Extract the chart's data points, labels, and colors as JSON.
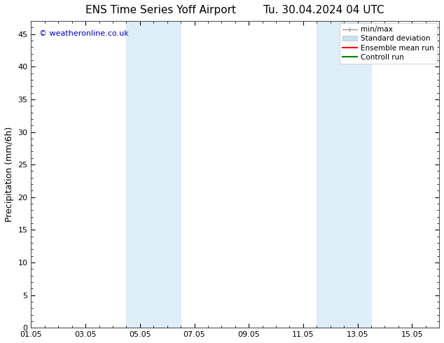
{
  "title_left": "ENS Time Series Yoff Airport",
  "title_right": "Tu. 30.04.2024 04 UTC",
  "ylabel": "Precipitation (mm/6h)",
  "watermark": "© weatheronline.co.uk",
  "ylim": [
    0,
    47
  ],
  "yticks": [
    0,
    5,
    10,
    15,
    20,
    25,
    30,
    35,
    40,
    45
  ],
  "xtick_labels": [
    "01.05",
    "03.05",
    "05.05",
    "07.05",
    "09.05",
    "11.05",
    "13.05",
    "15.05"
  ],
  "xtick_positions": [
    0,
    2,
    4,
    6,
    8,
    10,
    12,
    14
  ],
  "xlim": [
    0,
    15
  ],
  "shaded_regions": [
    {
      "xmin": 3.5,
      "xmax": 5.5,
      "color": "#deeef8"
    },
    {
      "xmin": 10.5,
      "xmax": 12.5,
      "color": "#deeef8"
    }
  ],
  "legend_entries": [
    {
      "label": "min/max",
      "color": "#aaaaaa"
    },
    {
      "label": "Standard deviation",
      "color": "#ccddee"
    },
    {
      "label": "Ensemble mean run",
      "color": "#ff0000"
    },
    {
      "label": "Controll run",
      "color": "#008000"
    }
  ],
  "bg_color": "#ffffff",
  "watermark_color": "#0000cc",
  "title_fontsize": 11,
  "tick_fontsize": 8,
  "ylabel_fontsize": 9,
  "watermark_fontsize": 8,
  "legend_fontsize": 7.5
}
